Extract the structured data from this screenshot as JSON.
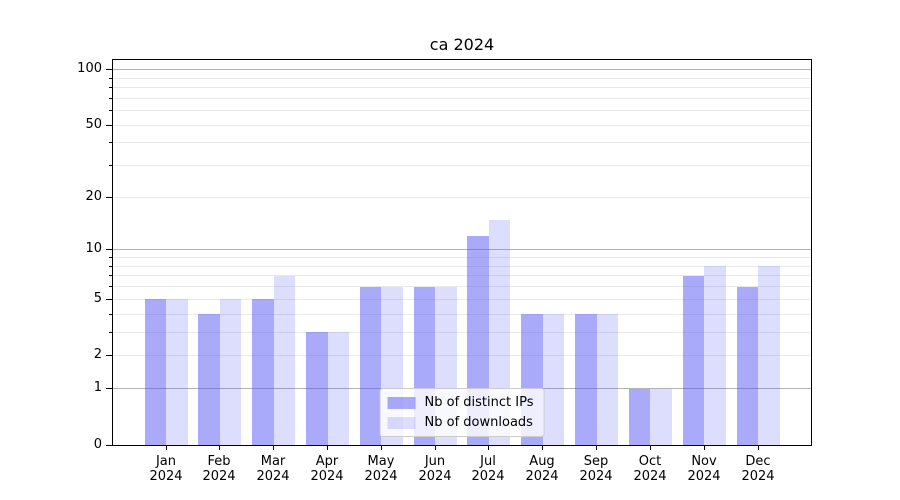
{
  "title": "ca 2024",
  "chart_data": {
    "type": "bar",
    "title": "ca 2024",
    "categories": [
      "Jan",
      "Feb",
      "Mar",
      "Apr",
      "May",
      "Jun",
      "Jul",
      "Aug",
      "Sep",
      "Oct",
      "Nov",
      "Dec"
    ],
    "x_year": "2024",
    "series": [
      {
        "name": "Nb of distinct IPs",
        "color": "rgba(85,85,245,0.5)",
        "values": [
          5,
          4,
          5,
          3,
          6,
          6,
          12,
          4,
          4,
          1,
          7,
          6
        ]
      },
      {
        "name": "Nb of downloads",
        "color": "rgba(85,85,245,0.2)",
        "values": [
          5,
          5,
          7,
          3,
          6,
          6,
          15,
          4,
          4,
          1,
          8,
          8
        ]
      }
    ],
    "yscale": "log1p",
    "ylim": [
      0,
      112.7
    ],
    "yticks_major": [
      0,
      1,
      2,
      5,
      10,
      20,
      50,
      100
    ],
    "yticks_minor": [
      3,
      4,
      6,
      7,
      8,
      9,
      30,
      40,
      60,
      70,
      80,
      90
    ],
    "grid": true,
    "legend_position": "lower center"
  },
  "colors": {
    "grid_minor": "#e9e9e9",
    "grid_decade": "#b2b2b2",
    "spine": "#000000",
    "background": "#ffffff"
  }
}
